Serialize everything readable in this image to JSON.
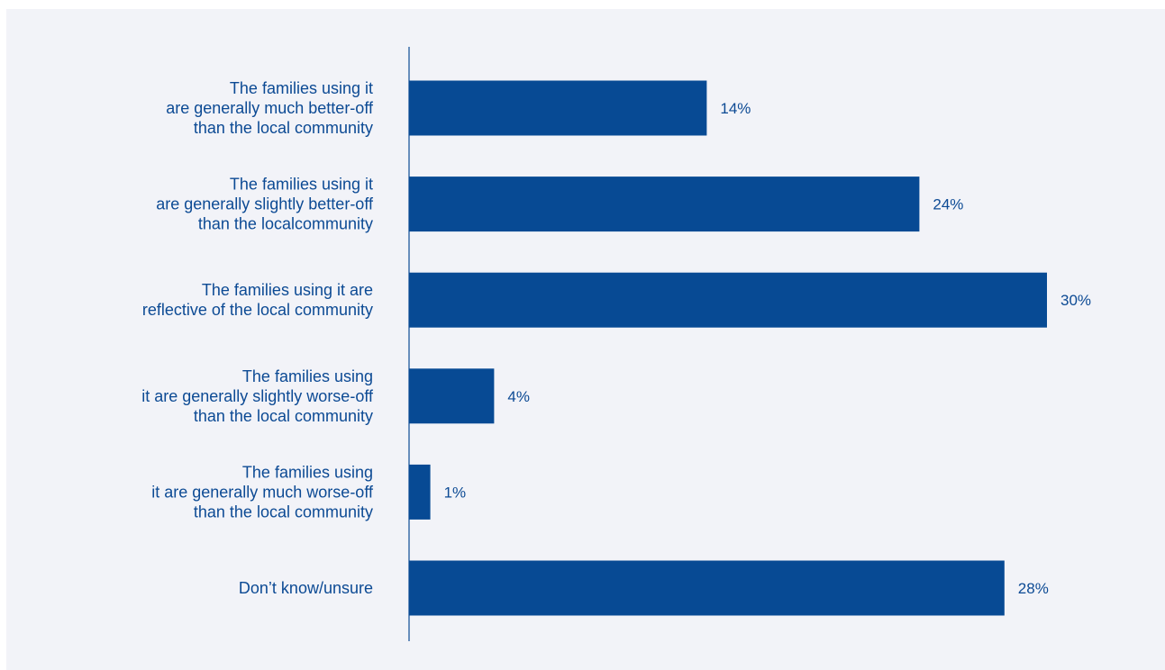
{
  "chart_data": {
    "type": "bar",
    "orientation": "horizontal",
    "categories": [
      [
        "The families using it",
        "are generally much better-off",
        "than the local community"
      ],
      [
        "The families using it",
        "are generally slightly better-off",
        "than the localcommunity"
      ],
      [
        "The families using it are",
        "reflective of the local community"
      ],
      [
        "The families using",
        "it are generally slightly worse-off",
        "than the local community"
      ],
      [
        "The families using",
        "it are generally much worse-off",
        "than the local community"
      ],
      [
        "Don’t know/unsure"
      ]
    ],
    "values": [
      14,
      24,
      30,
      4,
      1,
      28
    ],
    "value_labels": [
      "14%",
      "24%",
      "30%",
      "4%",
      "1%",
      "28%"
    ],
    "value_unit": "%",
    "xlim": [
      0,
      30
    ],
    "grid": false,
    "legend": "none",
    "bar_color": "#074a94",
    "axis_color": "#0c4a94",
    "label_color": "#0c4a94",
    "background_color": "#f2f3f8"
  }
}
